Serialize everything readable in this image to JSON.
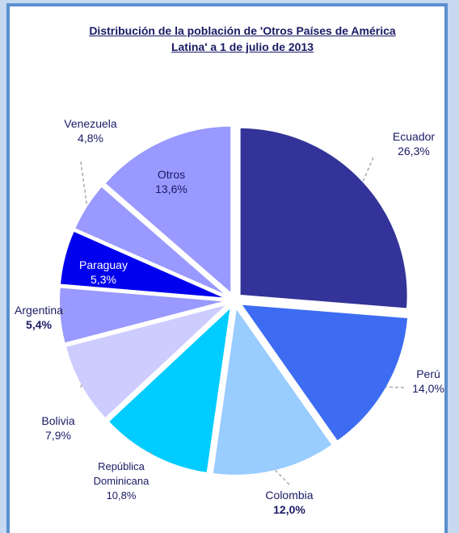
{
  "chart_data": {
    "type": "pie",
    "title": "Distribución de la población de 'Otros Países de América Latina' a 1 de julio de 2013",
    "categories": [
      "Ecuador",
      "Perú",
      "Colombia",
      "República Dominicana",
      "Bolivia",
      "Argentina",
      "Paraguay",
      "Venezuela",
      "Otros"
    ],
    "values": [
      26.3,
      14.0,
      12.0,
      10.8,
      7.9,
      5.4,
      5.3,
      4.8,
      13.6
    ],
    "value_labels": [
      "26,3%",
      "14,0%",
      "12,0%",
      "10,8%",
      "7,9%",
      "5,4%",
      "5,3%",
      "4,8%",
      "13,6%"
    ],
    "colors": [
      "#333399",
      "#3d6cf2",
      "#99ccff",
      "#00ccff",
      "#ccccff",
      "#9999ff",
      "#0000ee",
      "#9999ff",
      "#9999ff"
    ]
  }
}
